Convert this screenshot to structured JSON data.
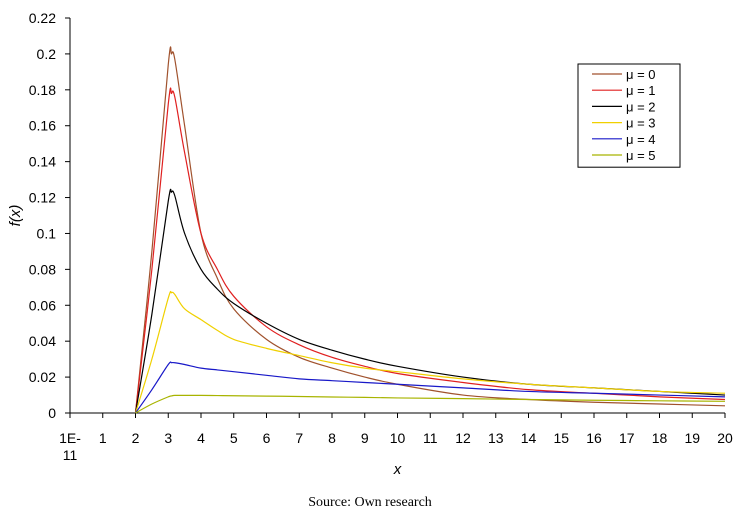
{
  "chart_data": {
    "type": "line",
    "xlabel": "x",
    "ylabel": "f(x)",
    "ylim": [
      0,
      0.22
    ],
    "y_ticks": [
      "0",
      "0.02",
      "0.04",
      "0.06",
      "0.08",
      "0.1",
      "0.12",
      "0.14",
      "0.16",
      "0.18",
      "0.2",
      "0.22"
    ],
    "categories": [
      "1E-11",
      "1",
      "2",
      "3",
      "4",
      "5",
      "6",
      "7",
      "8",
      "9",
      "10",
      "11",
      "12",
      "13",
      "14",
      "15",
      "16",
      "17",
      "18",
      "19",
      "20"
    ],
    "grid": false,
    "legend_position": "top-right",
    "x": [
      2,
      2.5,
      3,
      3.1,
      3.2,
      3.5,
      4,
      4.5,
      5,
      6,
      7,
      8,
      9,
      10,
      12,
      14,
      16,
      18,
      20
    ],
    "series": [
      {
        "name": "μ = 0",
        "color": "#a0522d",
        "values": [
          0,
          0.09,
          0.194,
          0.2,
          0.197,
          0.16,
          0.1,
          0.075,
          0.058,
          0.041,
          0.031,
          0.025,
          0.02,
          0.016,
          0.01,
          0.0075,
          0.006,
          0.005,
          0.004
        ]
      },
      {
        "name": "μ = 1",
        "color": "#e02020",
        "values": [
          0,
          0.08,
          0.172,
          0.178,
          0.176,
          0.145,
          0.1,
          0.08,
          0.065,
          0.048,
          0.038,
          0.031,
          0.026,
          0.022,
          0.017,
          0.013,
          0.011,
          0.009,
          0.0075
        ]
      },
      {
        "name": "μ = 2",
        "color": "#000000",
        "values": [
          0,
          0.055,
          0.118,
          0.123,
          0.121,
          0.1,
          0.08,
          0.069,
          0.061,
          0.05,
          0.041,
          0.035,
          0.03,
          0.026,
          0.02,
          0.016,
          0.014,
          0.012,
          0.01
        ]
      },
      {
        "name": "μ = 3",
        "color": "#f0d000",
        "values": [
          0,
          0.03,
          0.064,
          0.067,
          0.066,
          0.058,
          0.052,
          0.046,
          0.041,
          0.036,
          0.032,
          0.028,
          0.025,
          0.023,
          0.019,
          0.016,
          0.014,
          0.012,
          0.011
        ]
      },
      {
        "name": "μ = 4",
        "color": "#1818c8",
        "values": [
          0,
          0.013,
          0.027,
          0.028,
          0.028,
          0.027,
          0.025,
          0.024,
          0.023,
          0.021,
          0.019,
          0.018,
          0.017,
          0.016,
          0.014,
          0.012,
          0.011,
          0.01,
          0.009
        ]
      },
      {
        "name": "μ = 5",
        "color": "#a8b400",
        "values": [
          0,
          0.005,
          0.009,
          0.0095,
          0.0098,
          0.0098,
          0.0098,
          0.0097,
          0.0096,
          0.0094,
          0.0092,
          0.0089,
          0.0087,
          0.0084,
          0.008,
          0.0075,
          0.0071,
          0.0068,
          0.0065
        ]
      }
    ]
  },
  "footer": {
    "source": "Source: Own research"
  }
}
